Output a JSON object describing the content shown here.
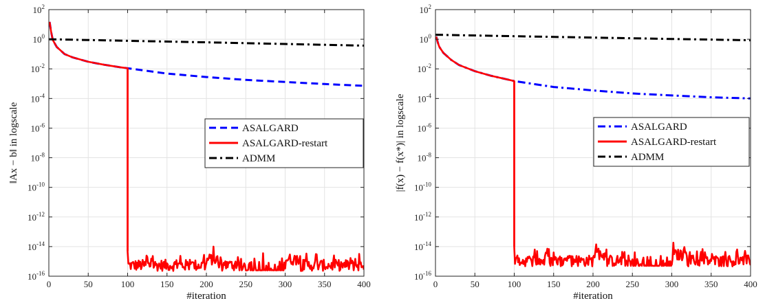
{
  "chart_data": [
    {
      "type": "line",
      "xlabel": "#iteration",
      "ylabel": "‖Ax − b‖ in logscale",
      "yscale": "log",
      "xlim": [
        0,
        400
      ],
      "ylim_exp": [
        -16,
        2
      ],
      "grid": true,
      "legend_position": "center-right",
      "x_ticks": [
        0,
        50,
        100,
        150,
        200,
        250,
        300,
        350,
        400
      ],
      "y_tick_exponents": [
        -16,
        -14,
        -12,
        -10,
        -8,
        -6,
        -4,
        -2,
        0,
        2
      ],
      "y_tick_base": "10",
      "series": [
        {
          "name": "ASALGARD",
          "color": "#0000ff",
          "dash": "dashed",
          "x": [
            1,
            3,
            5,
            10,
            20,
            30,
            50,
            70,
            90,
            100,
            150,
            200,
            250,
            300,
            350,
            400
          ],
          "y": [
            15,
            3.0,
            0.9,
            0.3,
            0.1,
            0.06,
            0.03,
            0.019,
            0.013,
            0.011,
            0.0048,
            0.0028,
            0.0018,
            0.0013,
            0.00095,
            0.00072
          ]
        },
        {
          "name": "ASALGARD-restart",
          "color": "#ff0000",
          "dash": "solid",
          "pre_restart": {
            "x": [
              1,
              3,
              5,
              10,
              20,
              30,
              50,
              70,
              90,
              100
            ],
            "y": [
              15,
              3.0,
              0.9,
              0.3,
              0.1,
              0.06,
              0.03,
              0.019,
              0.013,
              0.011
            ]
          },
          "restart_iteration": 100,
          "noise_floor_range": [
            2e-16,
            5e-15
          ]
        },
        {
          "name": "ADMM",
          "color": "#000000",
          "dash": "dashdot",
          "x": [
            0,
            100,
            200,
            300,
            400
          ],
          "y": [
            1.0,
            0.78,
            0.62,
            0.48,
            0.37
          ]
        }
      ]
    },
    {
      "type": "line",
      "xlabel": "#iteration",
      "ylabel": "|f(x) − f(x*)| in logscale",
      "yscale": "log",
      "xlim": [
        0,
        400
      ],
      "ylim_exp": [
        -16,
        2
      ],
      "grid": true,
      "legend_position": "center-right",
      "x_ticks": [
        0,
        50,
        100,
        150,
        200,
        250,
        300,
        350,
        400
      ],
      "y_tick_exponents": [
        -16,
        -14,
        -12,
        -10,
        -8,
        -6,
        -4,
        -2,
        0,
        2
      ],
      "y_tick_base": "10",
      "series": [
        {
          "name": "ASALGARD",
          "color": "#0000ff",
          "dash": "dashdot",
          "x": [
            1,
            3,
            5,
            10,
            20,
            30,
            50,
            70,
            90,
            100,
            150,
            200,
            250,
            300,
            350,
            400
          ],
          "y": [
            1.5,
            0.6,
            0.3,
            0.12,
            0.04,
            0.018,
            0.007,
            0.0035,
            0.002,
            0.0015,
            0.0006,
            0.00035,
            0.00022,
            0.00016,
            0.00012,
            0.0001
          ]
        },
        {
          "name": "ASALGARD-restart",
          "color": "#ff0000",
          "dash": "solid",
          "pre_restart": {
            "x": [
              1,
              3,
              5,
              10,
              20,
              30,
              50,
              70,
              90,
              100
            ],
            "y": [
              1.5,
              0.6,
              0.3,
              0.12,
              0.04,
              0.018,
              0.007,
              0.0035,
              0.002,
              0.0015
            ]
          },
          "restart_iteration": 100,
          "noise_floor_range": [
            4e-16,
            1e-14
          ]
        },
        {
          "name": "ADMM",
          "color": "#000000",
          "dash": "dashdot",
          "x": [
            0,
            100,
            200,
            300,
            400
          ],
          "y": [
            2.0,
            1.6,
            1.3,
            1.05,
            0.85
          ]
        }
      ]
    }
  ]
}
